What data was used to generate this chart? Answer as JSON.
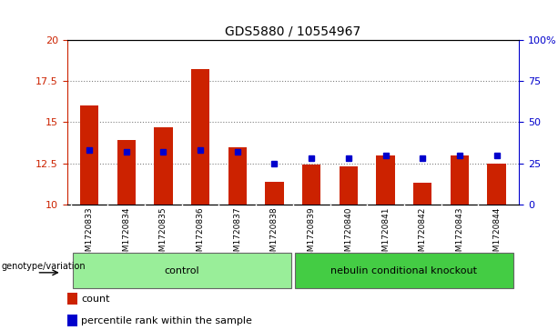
{
  "title": "GDS5880 / 10554967",
  "samples": [
    "GSM1720833",
    "GSM1720834",
    "GSM1720835",
    "GSM1720836",
    "GSM1720837",
    "GSM1720838",
    "GSM1720839",
    "GSM1720840",
    "GSM1720841",
    "GSM1720842",
    "GSM1720843",
    "GSM1720844"
  ],
  "counts": [
    16.0,
    13.9,
    14.7,
    18.2,
    13.5,
    11.4,
    12.4,
    12.3,
    13.0,
    11.3,
    13.0,
    12.5
  ],
  "percentiles": [
    33,
    32,
    32,
    33,
    32,
    25,
    28,
    28,
    30,
    28,
    30,
    30
  ],
  "ylim_left": [
    10,
    20
  ],
  "ylim_right": [
    0,
    100
  ],
  "yticks_left": [
    10,
    12.5,
    15,
    17.5,
    20
  ],
  "yticks_right": [
    0,
    25,
    50,
    75,
    100
  ],
  "ytick_labels_left": [
    "10",
    "12.5",
    "15",
    "17.5",
    "20"
  ],
  "ytick_labels_right": [
    "0",
    "25",
    "50",
    "75",
    "100%"
  ],
  "bar_color": "#cc2200",
  "dot_color": "#0000cc",
  "bar_bottom": 10,
  "groups": [
    {
      "label": "control",
      "start": 0,
      "end": 5,
      "color": "#99ee99"
    },
    {
      "label": "nebulin conditional knockout",
      "start": 6,
      "end": 11,
      "color": "#44cc44"
    }
  ],
  "group_label_prefix": "genotype/variation",
  "legend_count_label": "count",
  "legend_percentile_label": "percentile rank within the sample",
  "grid_color": "#000000",
  "grid_alpha": 0.5,
  "tick_label_color_left": "#cc2200",
  "tick_label_color_right": "#0000cc",
  "background_plot": "#ffffff",
  "background_xtick": "#cccccc",
  "bar_width": 0.5
}
